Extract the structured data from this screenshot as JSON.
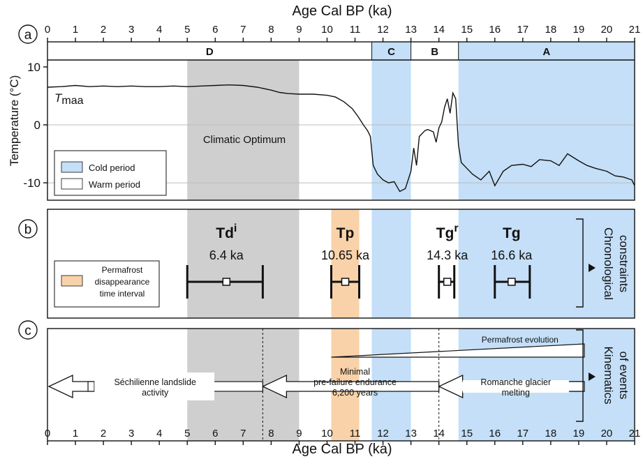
{
  "colors": {
    "cold": "#c4dff7",
    "optimum": "#cfcfcf",
    "permafrost": "#f9d2a9",
    "line": "#111111",
    "grid": "#bdbdbd"
  },
  "axis": {
    "xlabel": "Age Cal BP (ka)",
    "xlim": [
      0,
      21
    ],
    "xticks": [
      "0",
      "1",
      "2",
      "3",
      "4",
      "5",
      "6",
      "7",
      "8",
      "9",
      "10",
      "11",
      "12",
      "13",
      "14",
      "15",
      "16",
      "17",
      "18",
      "19",
      "20",
      "21"
    ]
  },
  "panels": {
    "a": {
      "label": "a",
      "ylabel": "Temperature (°C)",
      "ylim": [
        -13,
        13
      ],
      "yticks": [
        "10",
        "0",
        "-10"
      ],
      "series_label_main": "T",
      "series_label_sub": "maa",
      "optimum_label": "Climatic Optimum",
      "legend": {
        "cold": "Cold period",
        "warm": "Warm period"
      },
      "periods": [
        {
          "name": "D",
          "start": 0,
          "end": 11.6
        },
        {
          "name": "C",
          "start": 11.6,
          "end": 13.0
        },
        {
          "name": "B",
          "start": 13.0,
          "end": 14.7
        },
        {
          "name": "A",
          "start": 14.7,
          "end": 21
        }
      ]
    },
    "b": {
      "label": "b",
      "side_label": [
        "Chronological",
        "constraints"
      ],
      "legend": [
        "Permafrost",
        "disappearance",
        "time interval"
      ]
    },
    "c": {
      "label": "c",
      "side_label": [
        "Kinematics",
        "of events"
      ],
      "permafrost_label": "Permafrost evolution",
      "landslide_label": [
        "Séchilienne landslide",
        "activity"
      ],
      "endurance_label": [
        "Minimal",
        "pre-failure endurance",
        "6,200 years"
      ],
      "glacier_label": [
        "Romanche glacier",
        "melting"
      ]
    }
  },
  "chart_data": {
    "type": "line",
    "title": "",
    "xlabel": "Age Cal BP (ka)",
    "ylabel": "Temperature (°C)",
    "xlim": [
      0,
      21
    ],
    "ylim": [
      -13,
      13
    ],
    "grid": true,
    "shaded_intervals": [
      {
        "name": "Climatic Optimum",
        "start": 5.0,
        "end": 9.0,
        "kind": "optimum"
      },
      {
        "name": "Cold period",
        "start": 11.6,
        "end": 13.0,
        "kind": "cold"
      },
      {
        "name": "Cold period",
        "start": 14.7,
        "end": 21.0,
        "kind": "cold"
      },
      {
        "name": "Permafrost disappearance time interval",
        "start": 10.15,
        "end": 11.15,
        "kind": "permafrost"
      }
    ],
    "series": [
      {
        "name": "Tmaa",
        "x": [
          0,
          0.5,
          1,
          1.5,
          2,
          2.5,
          3,
          3.5,
          4,
          4.5,
          5,
          5.5,
          6,
          6.5,
          7,
          7.5,
          8,
          8.3,
          8.6,
          9,
          9.5,
          10,
          10.3,
          10.6,
          10.9,
          11.1,
          11.3,
          11.45,
          11.55,
          11.65,
          11.8,
          12.0,
          12.2,
          12.4,
          12.6,
          12.8,
          13.0,
          13.1,
          13.2,
          13.3,
          13.5,
          13.6,
          13.8,
          13.9,
          14.0,
          14.1,
          14.2,
          14.3,
          14.4,
          14.5,
          14.6,
          14.7,
          14.8,
          15.0,
          15.2,
          15.5,
          15.8,
          16.0,
          16.3,
          16.6,
          17.0,
          17.3,
          17.6,
          18.0,
          18.3,
          18.6,
          19.0,
          19.3,
          19.6,
          20.0,
          20.3,
          20.6,
          20.9,
          21.0
        ],
        "values": [
          6.5,
          6.6,
          6.8,
          6.6,
          6.7,
          6.6,
          6.7,
          6.6,
          6.6,
          6.7,
          6.6,
          6.7,
          6.8,
          6.9,
          6.8,
          6.5,
          6.0,
          5.6,
          5.4,
          5.3,
          5.3,
          5.1,
          4.8,
          4.0,
          2.8,
          1.5,
          0.0,
          -1.0,
          -2.0,
          -7.0,
          -8.5,
          -9.5,
          -10.0,
          -9.8,
          -11.5,
          -11.0,
          -8.0,
          -4.0,
          -7.0,
          -2.0,
          -1.0,
          -0.8,
          -1.2,
          -3.0,
          -0.5,
          0.5,
          3.0,
          4.5,
          2.0,
          5.5,
          4.5,
          -3.5,
          -6.5,
          -7.5,
          -8.5,
          -9.5,
          -8.0,
          -10.5,
          -8.0,
          -7.0,
          -6.8,
          -7.2,
          -6.0,
          -6.2,
          -7.0,
          -5.0,
          -6.2,
          -7.0,
          -7.5,
          -8.0,
          -8.8,
          -9.0,
          -9.5,
          -10.5
        ]
      }
    ],
    "constraints": [
      {
        "name": "Tdi",
        "label_main": "Td",
        "label_sup": "i",
        "value_label": "6.4 ka",
        "center": 6.4,
        "low": 5.0,
        "high": 7.7,
        "inner_low": 6.2,
        "inner_high": 6.6
      },
      {
        "name": "Tp",
        "label_main": "Tp",
        "label_sup": "",
        "value_label": "10.65 ka",
        "center": 10.65,
        "low": 10.15,
        "high": 11.15,
        "inner_low": 10.4,
        "inner_high": 10.9
      },
      {
        "name": "Tgr",
        "label_main": "Tg",
        "label_sup": "r",
        "value_label": "14.3 ka",
        "center": 14.3,
        "low": 14.0,
        "high": 14.55,
        "inner_low": 14.15,
        "inner_high": 14.45
      },
      {
        "name": "Tg",
        "label_main": "Tg",
        "label_sup": "",
        "value_label": "16.6 ka",
        "center": 16.6,
        "low": 16.0,
        "high": 17.25,
        "inner_low": 16.35,
        "inner_high": 16.85
      }
    ],
    "events": {
      "permafrost_wedge": {
        "start": 10.15,
        "end": 19.2
      },
      "dashed_lines": [
        7.7,
        14.0
      ],
      "landslide_arrow": {
        "from": 7.7,
        "to": 0.0
      },
      "endurance_arrow": {
        "from": 14.0,
        "to": 7.7
      },
      "glacier_arrow": {
        "from": 19.2,
        "to": 14.0
      }
    }
  }
}
